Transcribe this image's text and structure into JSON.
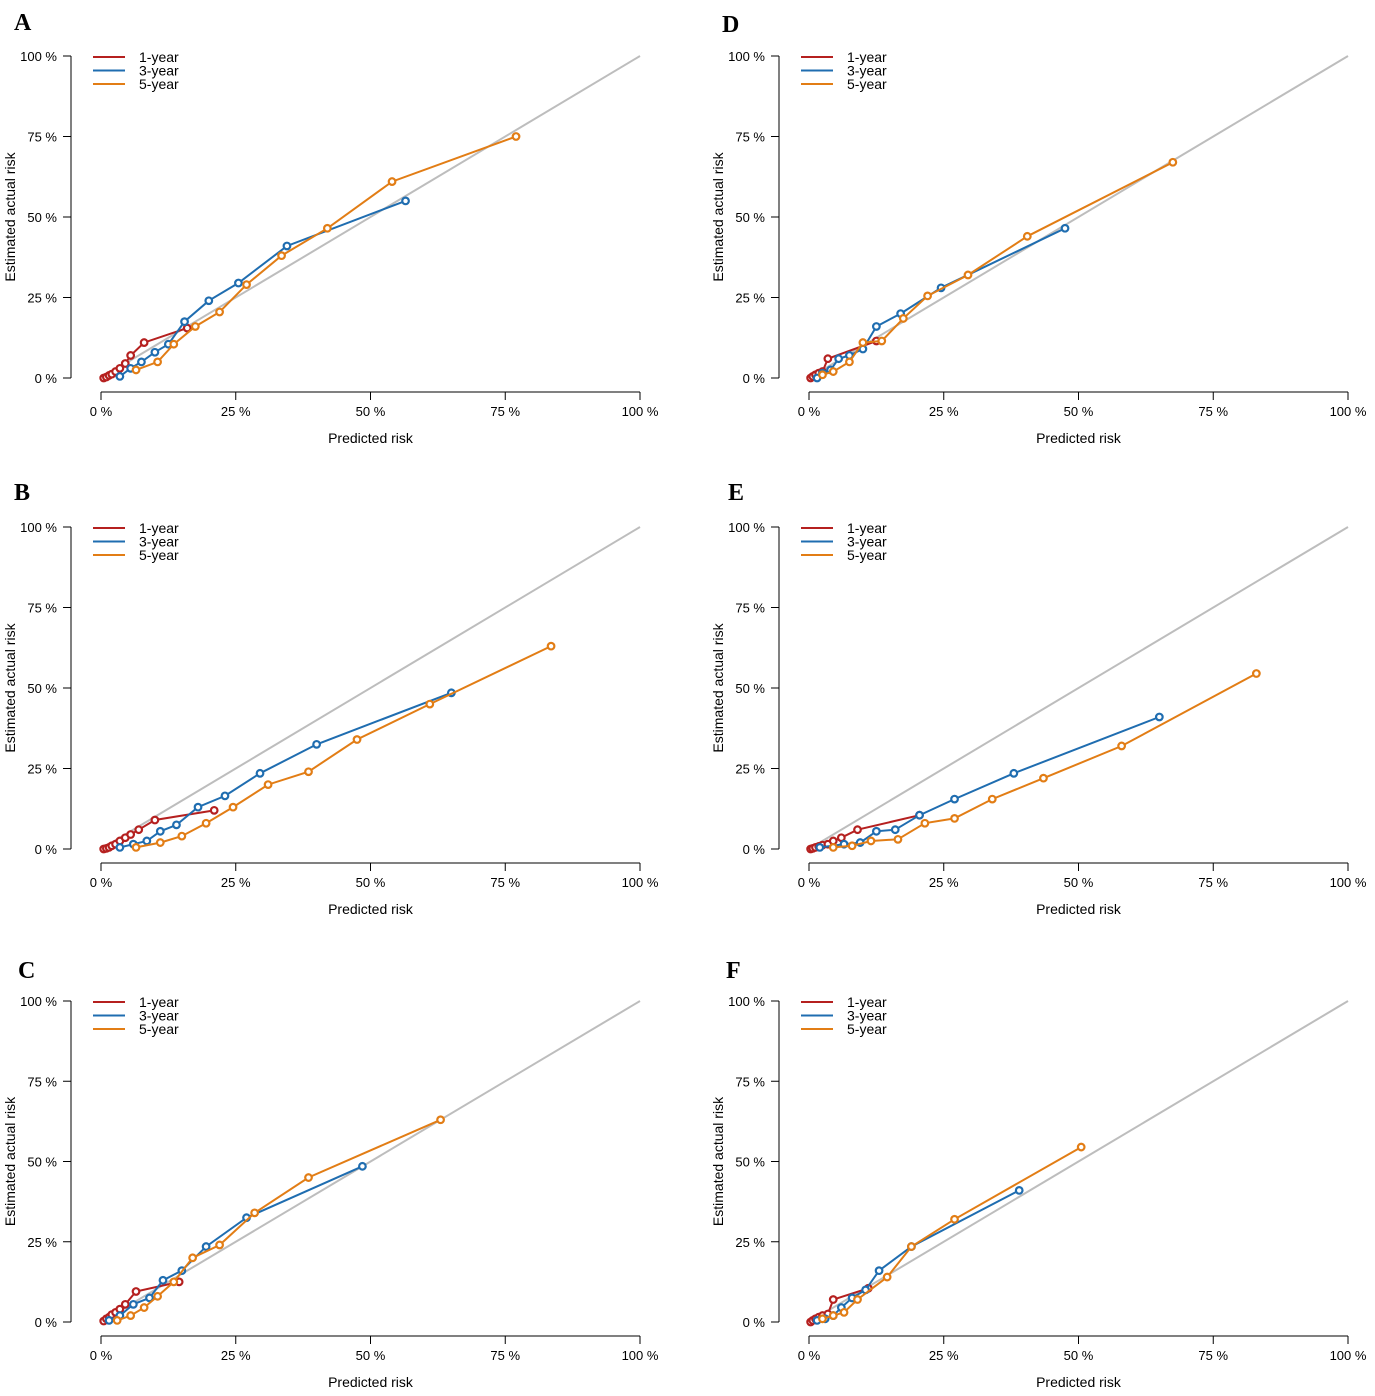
{
  "colors": {
    "one_year": "#b5201f",
    "three_year": "#1f6db0",
    "five_year": "#e27d15",
    "reference": "#bdbdbd"
  },
  "chart_data": [
    {
      "panel": "A",
      "type": "line",
      "xlabel": "Predicted risk",
      "ylabel": "Estimated actual risk",
      "xlim": [
        0,
        100
      ],
      "ylim": [
        0,
        100
      ],
      "x_ticks": [
        "0 %",
        "25 %",
        "50 %",
        "75 %",
        "100 %"
      ],
      "y_ticks": [
        "0 %",
        "25 %",
        "50 %",
        "75 %",
        "100 %"
      ],
      "legend_position": "top-left",
      "series": [
        {
          "name": "1-year",
          "x": [
            0.5,
            1,
            1.5,
            2,
            2.7,
            3.5,
            4.5,
            5.5,
            8,
            16
          ],
          "y": [
            0,
            0.3,
            0.8,
            1.2,
            2,
            3,
            4.5,
            7,
            11,
            15.5
          ]
        },
        {
          "name": "3-year",
          "x": [
            3.5,
            5.5,
            7.5,
            10,
            12.5,
            15.5,
            20,
            25.5,
            34.5,
            56.5
          ],
          "y": [
            0.5,
            3,
            5,
            8,
            10.5,
            17.5,
            24,
            29.5,
            41,
            55
          ]
        },
        {
          "name": "5-year",
          "x": [
            6.5,
            10.5,
            13.5,
            17.5,
            22,
            27,
            33.5,
            42,
            54,
            77
          ],
          "y": [
            2.5,
            5,
            10.5,
            16,
            20.5,
            29,
            38,
            46.5,
            61,
            75
          ]
        }
      ]
    },
    {
      "panel": "B",
      "type": "line",
      "xlabel": "Predicted risk",
      "ylabel": "Estimated actual risk",
      "xlim": [
        0,
        100
      ],
      "ylim": [
        0,
        100
      ],
      "x_ticks": [
        "0 %",
        "25 %",
        "50 %",
        "75 %",
        "100 %"
      ],
      "y_ticks": [
        "0 %",
        "25 %",
        "50 %",
        "75 %",
        "100 %"
      ],
      "legend_position": "top-left",
      "series": [
        {
          "name": "1-year",
          "x": [
            0.5,
            1,
            1.5,
            2,
            2.7,
            3.5,
            4.5,
            5.5,
            7,
            10,
            21
          ],
          "y": [
            0,
            0.2,
            0.5,
            1,
            1.5,
            2.5,
            3.5,
            4.5,
            6,
            9,
            12
          ]
        },
        {
          "name": "3-year",
          "x": [
            3.5,
            6,
            8.5,
            11,
            14,
            18,
            23,
            29.5,
            40,
            65
          ],
          "y": [
            0.5,
            1.5,
            2.5,
            5.5,
            7.5,
            13,
            16.5,
            23.5,
            32.5,
            48.5
          ]
        },
        {
          "name": "5-year",
          "x": [
            6.5,
            11,
            15,
            19.5,
            24.5,
            31,
            38.5,
            47.5,
            61,
            83.5
          ],
          "y": [
            0.5,
            2,
            4,
            8,
            13,
            20,
            24,
            34,
            45,
            63
          ]
        }
      ]
    },
    {
      "panel": "C",
      "type": "line",
      "xlabel": "Predicted risk",
      "ylabel": "Estimated actual risk",
      "xlim": [
        0,
        100
      ],
      "ylim": [
        0,
        100
      ],
      "x_ticks": [
        "0 %",
        "25 %",
        "50 %",
        "75 %",
        "100 %"
      ],
      "y_ticks": [
        "0 %",
        "25 %",
        "50 %",
        "75 %",
        "100 %"
      ],
      "legend_position": "top-left",
      "series": [
        {
          "name": "1-year",
          "x": [
            0.5,
            1,
            1.5,
            2,
            2.7,
            3.5,
            4.5,
            6.5,
            14.5
          ],
          "y": [
            0.3,
            1,
            1.5,
            2.3,
            3,
            4,
            5.5,
            9.5,
            12.5
          ]
        },
        {
          "name": "3-year",
          "x": [
            1.5,
            3.5,
            6,
            9,
            11.5,
            15,
            19.5,
            27,
            48.5
          ],
          "y": [
            0.5,
            2,
            5.5,
            7.5,
            13,
            16,
            23.5,
            32.5,
            48.5
          ]
        },
        {
          "name": "5-year",
          "x": [
            3,
            5.5,
            8,
            10.5,
            13.5,
            17,
            22,
            28.5,
            38.5,
            63
          ],
          "y": [
            0.5,
            2,
            4.5,
            8,
            12.5,
            20,
            24,
            34,
            45,
            63
          ]
        }
      ]
    },
    {
      "panel": "D",
      "type": "line",
      "xlabel": "Predicted risk",
      "ylabel": "Estimated actual risk",
      "xlim": [
        0,
        100
      ],
      "ylim": [
        0,
        100
      ],
      "x_ticks": [
        "0 %",
        "25 %",
        "50 %",
        "75 %",
        "100 %"
      ],
      "y_ticks": [
        "0 %",
        "25 %",
        "50 %",
        "75 %",
        "100 %"
      ],
      "legend_position": "top-left",
      "series": [
        {
          "name": "1-year",
          "x": [
            0.3,
            0.7,
            1.2,
            1.8,
            2.5,
            3.5,
            12.5
          ],
          "y": [
            0,
            0.5,
            1,
            1.5,
            2,
            6,
            11.5
          ]
        },
        {
          "name": "3-year",
          "x": [
            1.5,
            2.5,
            4,
            5.5,
            7.5,
            10,
            12.5,
            17,
            24.5,
            47.5
          ],
          "y": [
            0,
            1.5,
            2.5,
            6,
            7,
            9,
            16,
            20,
            28,
            46.5
          ]
        },
        {
          "name": "5-year",
          "x": [
            2.5,
            4.5,
            7.5,
            10,
            13.5,
            17.5,
            22,
            29.5,
            40.5,
            67.5
          ],
          "y": [
            1,
            2,
            5,
            11,
            11.5,
            18.5,
            25.5,
            32,
            44,
            67
          ]
        }
      ]
    },
    {
      "panel": "E",
      "type": "line",
      "xlabel": "Predicted risk",
      "ylabel": "Estimated actual risk",
      "xlim": [
        0,
        100
      ],
      "ylim": [
        0,
        100
      ],
      "x_ticks": [
        "0 %",
        "25 %",
        "50 %",
        "75 %",
        "100 %"
      ],
      "y_ticks": [
        "0 %",
        "25 %",
        "50 %",
        "75 %",
        "100 %"
      ],
      "legend_position": "top-left",
      "series": [
        {
          "name": "1-year",
          "x": [
            0.3,
            0.7,
            1.2,
            1.8,
            2.5,
            3.5,
            4.5,
            6,
            9,
            20.5
          ],
          "y": [
            0,
            0.2,
            0.5,
            0.8,
            1.2,
            1.5,
            2.5,
            3.5,
            6,
            10.5
          ]
        },
        {
          "name": "3-year",
          "x": [
            2,
            6.5,
            9.5,
            12.5,
            16,
            20.5,
            27,
            38,
            65
          ],
          "y": [
            0.5,
            1.5,
            2,
            5.5,
            6,
            10.5,
            15.5,
            23.5,
            41
          ]
        },
        {
          "name": "5-year",
          "x": [
            4.5,
            8,
            11.5,
            16.5,
            21.5,
            27,
            34,
            43.5,
            58,
            83
          ],
          "y": [
            0.5,
            1,
            2.5,
            3,
            8,
            9.5,
            15.5,
            22,
            32,
            54.5
          ]
        }
      ]
    },
    {
      "panel": "F",
      "type": "line",
      "xlabel": "Predicted risk",
      "ylabel": "Estimated actual risk",
      "xlim": [
        0,
        100
      ],
      "ylim": [
        0,
        100
      ],
      "x_ticks": [
        "0 %",
        "25 %",
        "50 %",
        "75 %",
        "100 %"
      ],
      "y_ticks": [
        "0 %",
        "25 %",
        "50 %",
        "75 %",
        "100 %"
      ],
      "legend_position": "top-left",
      "series": [
        {
          "name": "1-year",
          "x": [
            0.3,
            0.7,
            1.2,
            1.8,
            2.5,
            3.5,
            4.5,
            11
          ],
          "y": [
            0,
            0.5,
            1,
            1.5,
            2,
            2.5,
            7,
            10.5
          ]
        },
        {
          "name": "3-year",
          "x": [
            1.5,
            3,
            4.5,
            6,
            8,
            10.5,
            13,
            19,
            39
          ],
          "y": [
            0.5,
            1,
            2,
            4.5,
            7.5,
            10,
            16,
            23.5,
            41
          ]
        },
        {
          "name": "5-year",
          "x": [
            2.5,
            4.5,
            6.5,
            9,
            14.5,
            19,
            27,
            50.5
          ],
          "y": [
            1,
            2,
            3,
            7,
            14,
            23.5,
            32,
            54.5
          ]
        }
      ]
    }
  ]
}
